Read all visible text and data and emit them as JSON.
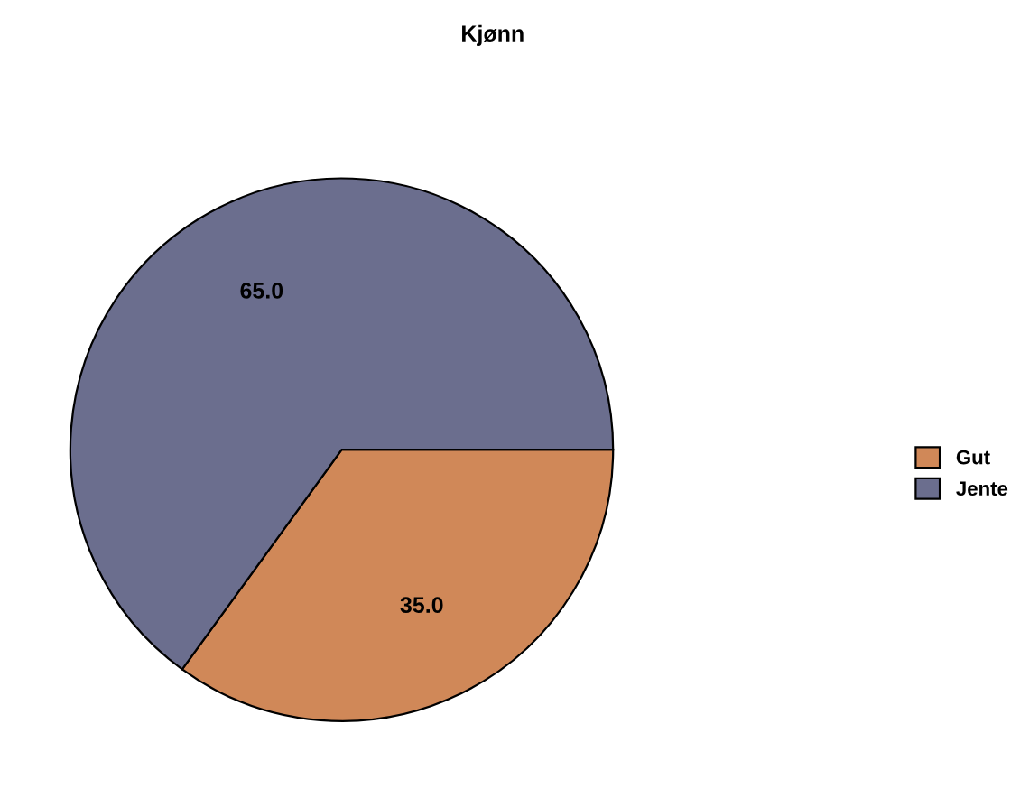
{
  "chart_data": {
    "type": "pie",
    "title": "Kjønn",
    "categories": [
      "Gut",
      "Jente"
    ],
    "values": [
      35,
      65
    ],
    "value_labels": [
      "35.0",
      "65.0"
    ],
    "colors": [
      "#d08858",
      "#6b6e8e"
    ],
    "legend": "right"
  }
}
